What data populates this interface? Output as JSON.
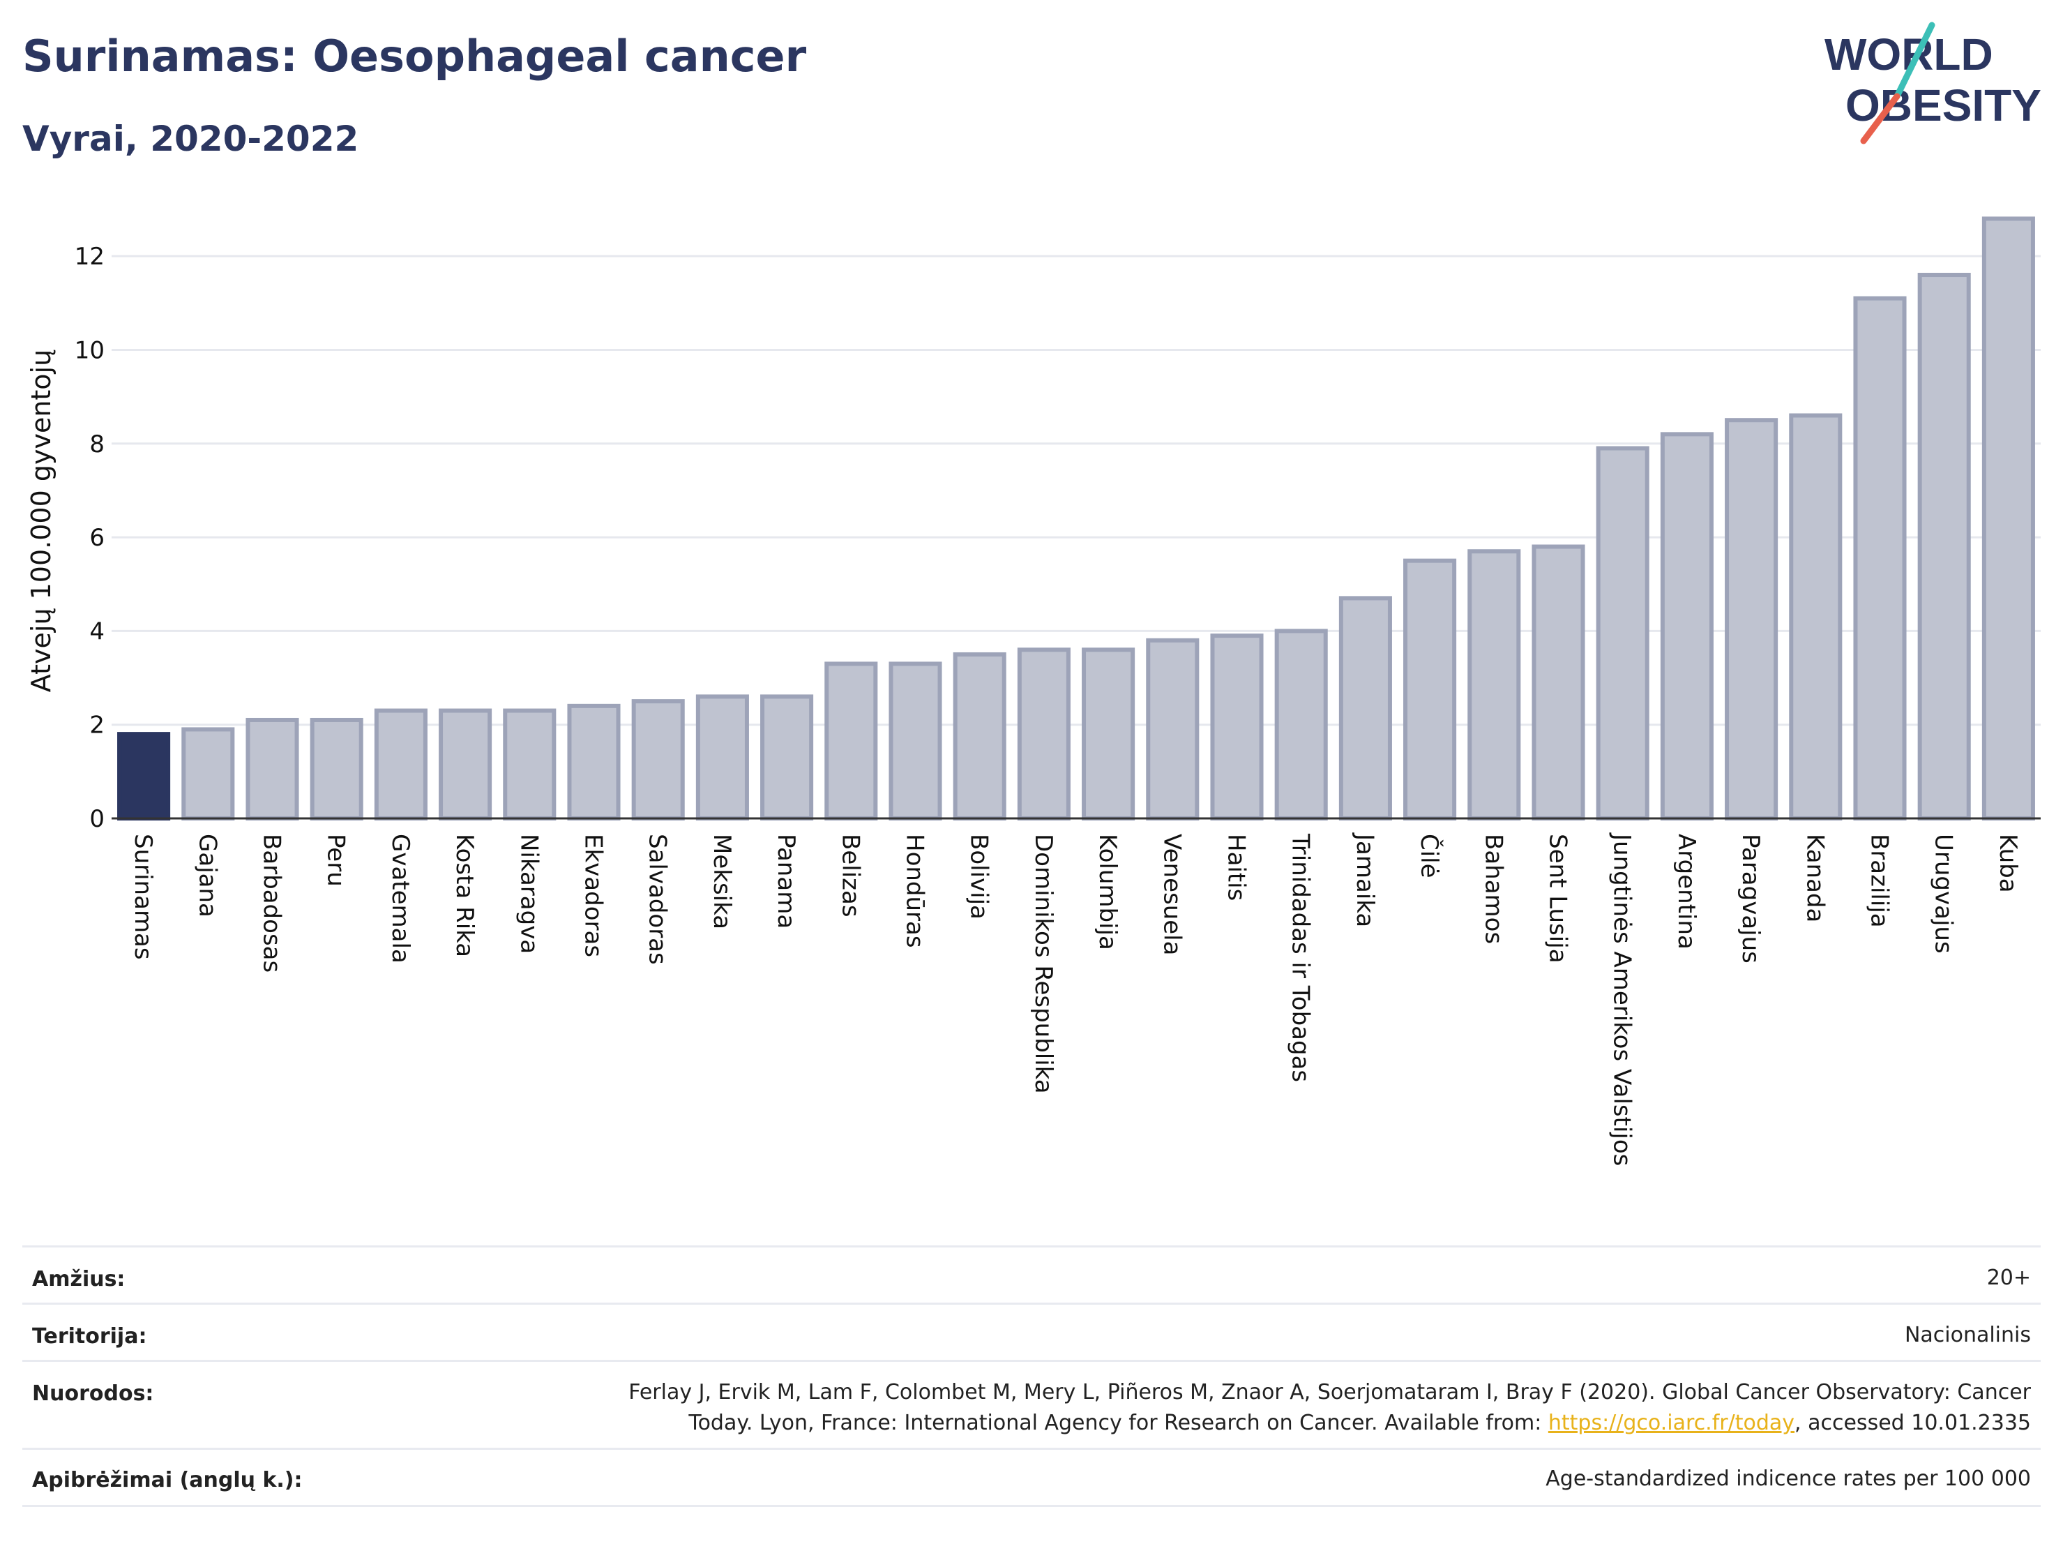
{
  "header": {
    "title": "Surinamas: Oesophageal cancer",
    "subtitle": "Vyrai, 2020-2022"
  },
  "logo": {
    "line1": "WORLD",
    "line2": "OBESITY",
    "colors": {
      "text": "#2b3660",
      "slash_top": "#3cbfb7",
      "slash_bottom": "#e8604c"
    }
  },
  "chart_data": {
    "type": "bar",
    "ylabel": "Atvejų 100.000 gyventojų",
    "ylim": [
      0,
      13
    ],
    "yticks": [
      0,
      2,
      4,
      6,
      8,
      10,
      12
    ],
    "grid": true,
    "highlight": "Surinamas",
    "colors": {
      "highlight": "#2b3660",
      "bars": "#bfc3d0",
      "bar_border": "#9da3b8"
    },
    "categories": [
      "Surinamas",
      "Gajana",
      "Barbadosas",
      "Peru",
      "Gvatemala",
      "Kosta Rika",
      "Nikaragva",
      "Ekvadoras",
      "Salvadoras",
      "Meksika",
      "Panama",
      "Belizas",
      "Hondūras",
      "Bolivija",
      "Dominikos Respublika",
      "Kolumbija",
      "Venesuela",
      "Haitis",
      "Trinidadas ir Tobagas",
      "Jamaika",
      "Čilė",
      "Bahamos",
      "Sent Lusija",
      "Jungtinės Amerikos Valstijos",
      "Argentina",
      "Paragvajus",
      "Kanada",
      "Brazilija",
      "Urugvajus",
      "Kuba"
    ],
    "values": [
      1.8,
      1.9,
      2.1,
      2.1,
      2.3,
      2.3,
      2.3,
      2.4,
      2.5,
      2.6,
      2.6,
      3.3,
      3.3,
      3.5,
      3.6,
      3.6,
      3.8,
      3.9,
      4.0,
      4.7,
      5.5,
      5.7,
      5.8,
      7.9,
      8.2,
      8.5,
      8.6,
      11.1,
      11.6,
      12.8
    ]
  },
  "info": {
    "rows": [
      {
        "label": "Amžius:",
        "value": "20+"
      },
      {
        "label": "Teritorija:",
        "value": "Nacionalinis"
      },
      {
        "label": "Nuorodos:",
        "value_line1": "Ferlay J, Ervik M, Lam F, Colombet M, Mery L, Piñeros M, Znaor A, Soerjomataram I, Bray F (2020). Global Cancer Observatory: Cancer",
        "value_line2_pre": "Today. Lyon, France: International Agency for Research on Cancer. Available from: ",
        "link": "https://gco.iarc.fr/today",
        "value_line2_post": ", accessed 10.01.2335"
      },
      {
        "label": "Apibrėžimai (anglų k.):",
        "value": "Age-standardized indicence rates per 100 000"
      }
    ]
  }
}
